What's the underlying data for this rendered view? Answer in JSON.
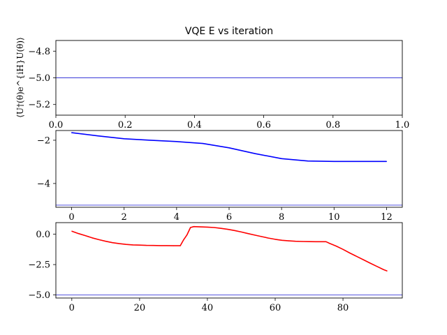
{
  "chart_data": [
    {
      "type": "line",
      "title": "VQE E vs iteration",
      "ylabel": "⟨U†(θ)e^{iH}U(θ)⟩",
      "xlim": [
        0.0,
        1.0
      ],
      "ylim": [
        -5.28,
        -4.72
      ],
      "xticks": [
        0.0,
        0.2,
        0.4,
        0.6,
        0.8,
        1.0
      ],
      "xtick_labels": [
        "0.0",
        "0.2",
        "0.4",
        "0.6",
        "0.8",
        "1.0"
      ],
      "yticks": [
        -4.8,
        -5.0,
        -5.2
      ],
      "ytick_labels": [
        "−4.8",
        "−5.0",
        "−5.2"
      ],
      "reference_line": {
        "y": -5.0,
        "color": "#3a3ad8"
      },
      "series": []
    },
    {
      "type": "line",
      "xlim": [
        -0.6,
        12.6
      ],
      "ylim": [
        -5.1,
        -1.55
      ],
      "xticks": [
        0,
        2,
        4,
        6,
        8,
        10,
        12
      ],
      "xtick_labels": [
        "0",
        "2",
        "4",
        "6",
        "8",
        "10",
        "12"
      ],
      "yticks": [
        -2,
        -4
      ],
      "ytick_labels": [
        "−2",
        "−4"
      ],
      "reference_line": {
        "y": -5.0,
        "color": "#3a3ad8"
      },
      "series": [
        {
          "color": "#0000ff",
          "x": [
            0,
            1,
            2,
            3,
            4,
            5,
            6,
            7,
            8,
            9,
            10,
            11,
            12
          ],
          "y": [
            -1.65,
            -1.8,
            -1.93,
            -2.0,
            -2.06,
            -2.15,
            -2.35,
            -2.62,
            -2.85,
            -2.96,
            -2.98,
            -2.98,
            -2.98
          ]
        }
      ]
    },
    {
      "type": "line",
      "xlim": [
        -4.7,
        97.5
      ],
      "ylim": [
        -5.25,
        0.95
      ],
      "xticks": [
        0,
        20,
        40,
        60,
        80
      ],
      "xtick_labels": [
        "0",
        "20",
        "40",
        "60",
        "80"
      ],
      "yticks": [
        0.0,
        -2.5,
        -5.0
      ],
      "ytick_labels": [
        "0.0",
        "−2.5",
        "−5.0"
      ],
      "reference_line": {
        "y": -5.0,
        "color": "#3a3ad8"
      },
      "series": [
        {
          "color": "#ff0000",
          "x": [
            0,
            2,
            4,
            6,
            8,
            10,
            12,
            14,
            16,
            18,
            20,
            22,
            24,
            26,
            28,
            30,
            32,
            33,
            34,
            35,
            36,
            38,
            40,
            42,
            44,
            46,
            48,
            50,
            52,
            54,
            56,
            58,
            60,
            62,
            64,
            66,
            68,
            70,
            72,
            74,
            75,
            76,
            78,
            80,
            82,
            84,
            86,
            88,
            90,
            92,
            93
          ],
          "y": [
            0.25,
            0.05,
            -0.12,
            -0.3,
            -0.45,
            -0.58,
            -0.7,
            -0.78,
            -0.84,
            -0.88,
            -0.9,
            -0.92,
            -0.93,
            -0.94,
            -0.94,
            -0.95,
            -0.95,
            -0.45,
            -0.05,
            0.55,
            0.62,
            0.6,
            0.58,
            0.55,
            0.48,
            0.4,
            0.3,
            0.18,
            0.05,
            -0.08,
            -0.2,
            -0.32,
            -0.42,
            -0.5,
            -0.55,
            -0.58,
            -0.6,
            -0.61,
            -0.62,
            -0.62,
            -0.62,
            -0.75,
            -0.98,
            -1.25,
            -1.55,
            -1.82,
            -2.1,
            -2.38,
            -2.65,
            -2.92,
            -3.02
          ]
        }
      ]
    }
  ]
}
